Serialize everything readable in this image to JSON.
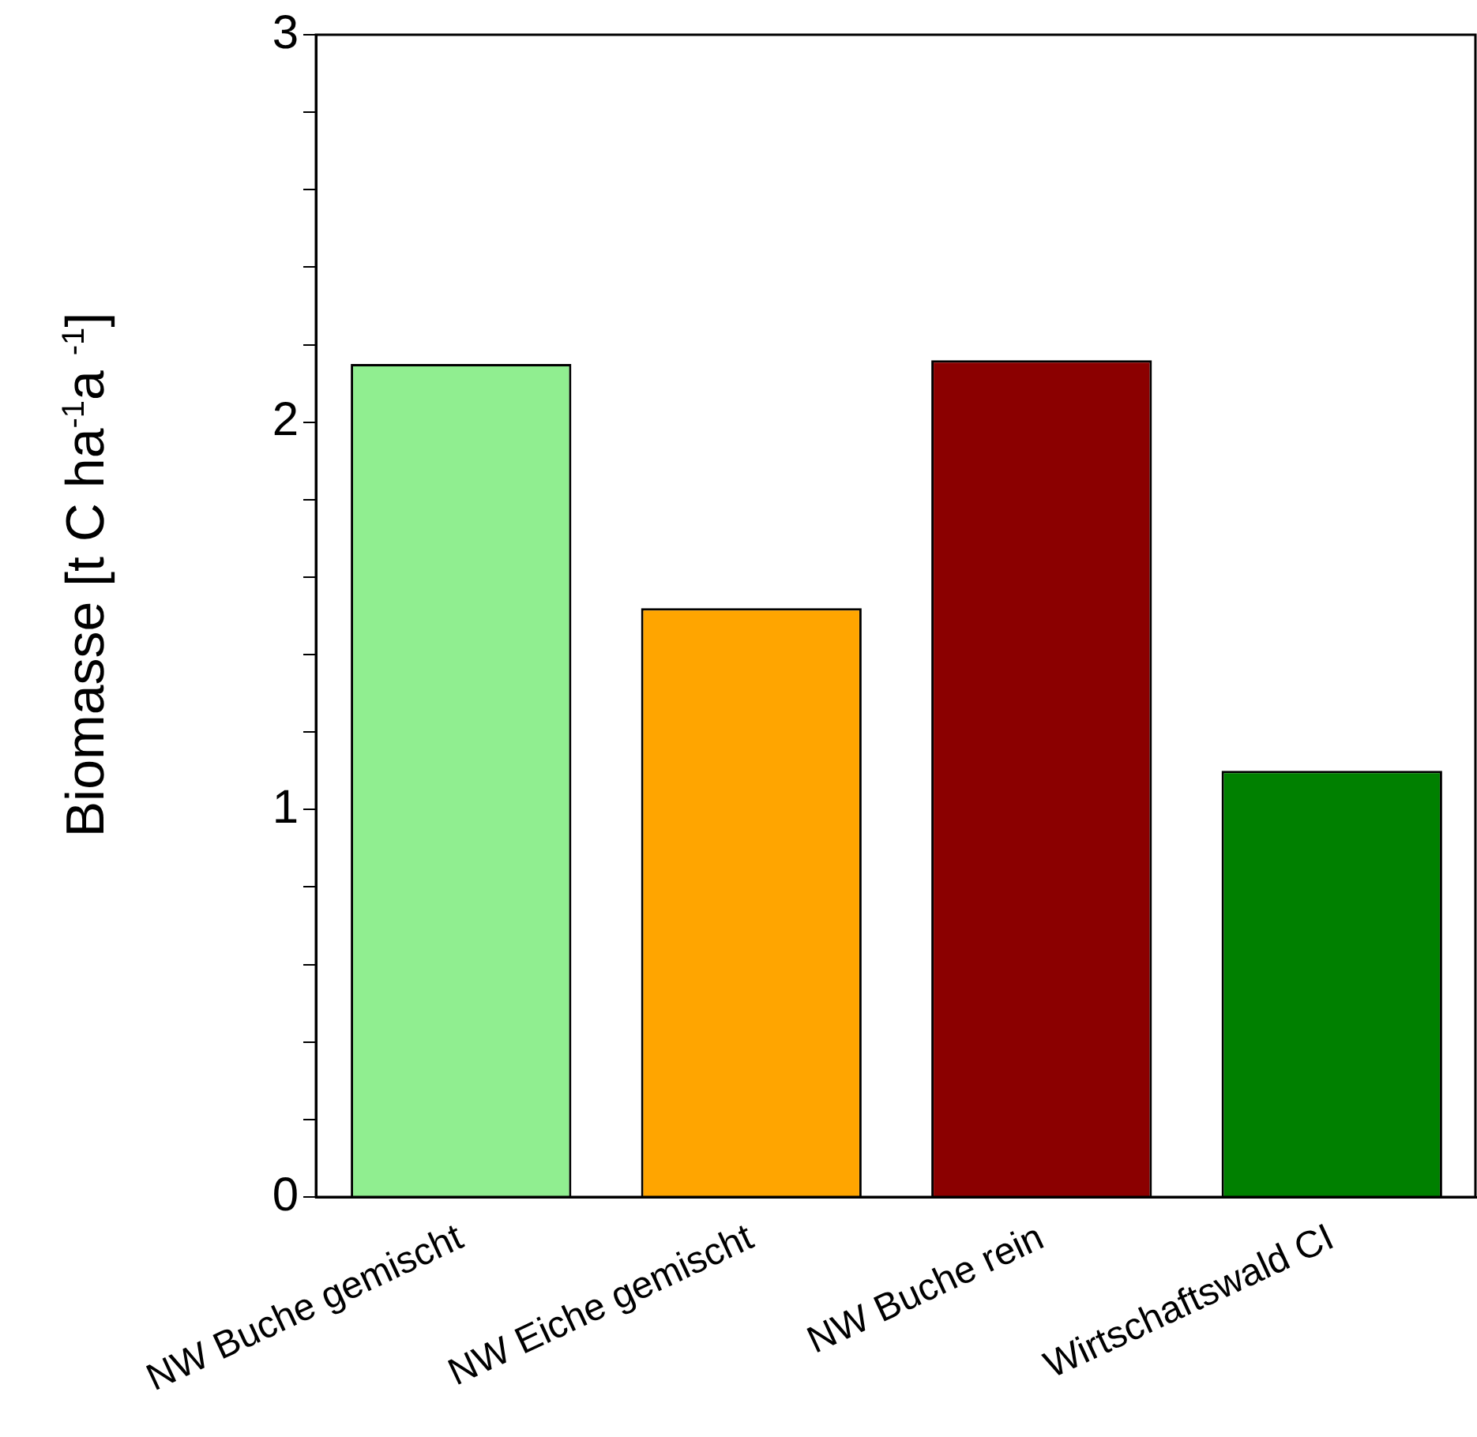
{
  "chart_data": {
    "type": "bar",
    "ylabel": "Biomasse [t C ha$^{-1}$a $^{-1}$]",
    "categories": [
      "NW Buche gemischt",
      "NW Eiche gemischt",
      "NW Buche rein",
      "Wirtschaftswald CI"
    ],
    "values": [
      2.15,
      1.52,
      2.16,
      1.1
    ],
    "colors": [
      "#90ee90",
      "#ffa500",
      "#8b0000",
      "#008000"
    ],
    "ylim": [
      0,
      3
    ],
    "yticks": [
      0,
      {
        "value": 0.2,
        "label": null
      },
      {
        "value": 0.4,
        "label": null
      },
      {
        "value": 0.6,
        "label": null
      },
      {
        "value": 0.8,
        "label": null
      },
      1,
      {
        "value": 1.2,
        "label": null
      },
      {
        "value": 1.4,
        "label": null
      },
      {
        "value": 1.6,
        "label": null
      },
      {
        "value": 1.8,
        "label": null
      },
      2,
      {
        "value": 2.2,
        "label": null
      },
      {
        "value": 2.4,
        "label": null
      },
      {
        "value": 2.6,
        "label": null
      },
      {
        "value": 2.8,
        "label": null
      },
      3
    ],
    "grid": false,
    "legend": false
  }
}
